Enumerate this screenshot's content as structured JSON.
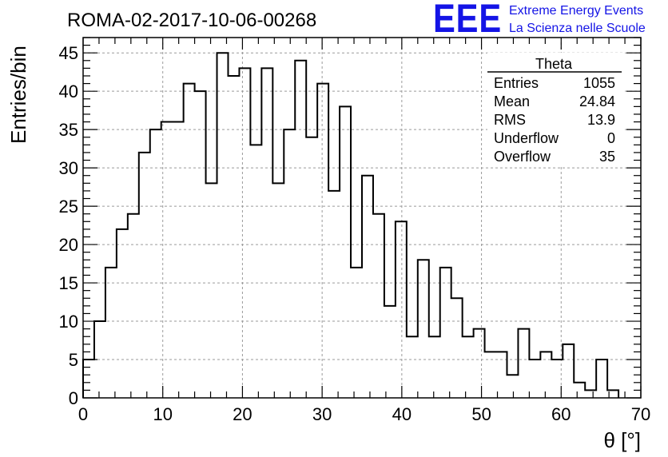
{
  "title": "ROMA-02-2017-10-06-00268",
  "logo": {
    "mark": "EEE",
    "line1": "Extreme Energy Events",
    "line2": "La Scienza nelle Scuole",
    "color": "#1414e6"
  },
  "stats": {
    "name": "Theta",
    "rows": [
      {
        "label": "Entries",
        "value": "1055"
      },
      {
        "label": "Mean",
        "value": "24.84"
      },
      {
        "label": "RMS",
        "value": "13.9"
      },
      {
        "label": "Underflow",
        "value": "0"
      },
      {
        "label": "Overflow",
        "value": "35"
      }
    ]
  },
  "chart_data": {
    "type": "bar",
    "style": "step-histogram",
    "xlabel": "θ [°]",
    "ylabel": "Entries/bin",
    "xlim": [
      0,
      70
    ],
    "ylim": [
      0,
      47
    ],
    "xticks": [
      0,
      10,
      20,
      30,
      40,
      50,
      60,
      70
    ],
    "yticks": [
      0,
      5,
      10,
      15,
      20,
      25,
      30,
      35,
      40,
      45
    ],
    "grid": true,
    "bin_width": 1.4,
    "bin_edges_start": 0,
    "values": [
      5,
      10,
      17,
      22,
      24,
      32,
      35,
      36,
      36,
      41,
      40,
      28,
      45,
      42,
      43,
      33,
      43,
      28,
      35,
      44,
      34,
      41,
      27,
      38,
      17,
      29,
      24,
      12,
      23,
      8,
      18,
      8,
      17,
      13,
      8,
      9,
      6,
      6,
      3,
      9,
      5,
      6,
      5,
      7,
      2,
      1,
      5,
      1
    ]
  }
}
